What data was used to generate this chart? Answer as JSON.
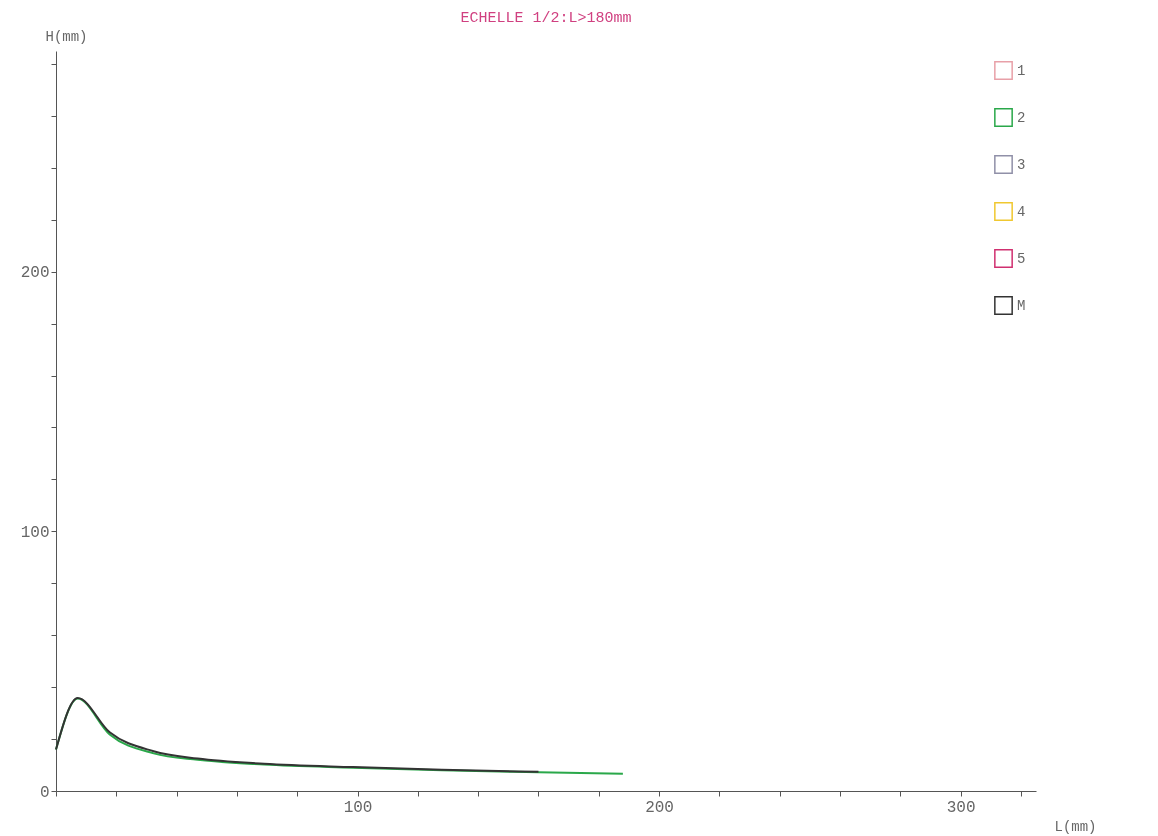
{
  "chart_data": {
    "type": "line",
    "title": "ECHELLE 1/2:L>180mm",
    "xlabel": "L(mm)",
    "ylabel": "H(mm)",
    "xlim": [
      0,
      325
    ],
    "ylim": [
      0,
      285
    ],
    "xticks": [
      {
        "value": 0,
        "label": null
      },
      {
        "value": 20,
        "label": null
      },
      {
        "value": 40,
        "label": null
      },
      {
        "value": 60,
        "label": null
      },
      {
        "value": 80,
        "label": null
      },
      100,
      {
        "value": 120,
        "label": null
      },
      {
        "value": 140,
        "label": null
      },
      {
        "value": 160,
        "label": null
      },
      {
        "value": 180,
        "label": null
      },
      200,
      {
        "value": 220,
        "label": null
      },
      {
        "value": 240,
        "label": null
      },
      {
        "value": 260,
        "label": null
      },
      {
        "value": 280,
        "label": null
      },
      300,
      {
        "value": 320,
        "label": null
      }
    ],
    "yticks": [
      0,
      {
        "value": 20,
        "label": null
      },
      {
        "value": 40,
        "label": null
      },
      {
        "value": 60,
        "label": null
      },
      {
        "value": 80,
        "label": null
      },
      100,
      {
        "value": 120,
        "label": null
      },
      {
        "value": 140,
        "label": null
      },
      {
        "value": 160,
        "label": null
      },
      {
        "value": 180,
        "label": null
      },
      200,
      {
        "value": 220,
        "label": null
      },
      {
        "value": 240,
        "label": null
      },
      {
        "value": 260,
        "label": null
      },
      {
        "value": 280,
        "label": null
      }
    ],
    "grid": false,
    "legend": "top right",
    "marker": "none",
    "line_style": "solid",
    "series": [
      {
        "name": "1",
        "color": "#e8a0a8"
      },
      {
        "name": "2",
        "color": "#2aa84a",
        "x": [
          0,
          7.2,
          17.8,
          32.4,
          47,
          69,
          98.5,
          128,
          160,
          188
        ],
        "values": [
          16,
          35.6,
          21.8,
          14.5,
          12,
          10.2,
          9,
          8,
          7.2,
          6.6
        ]
      },
      {
        "name": "3",
        "color": "#9090a8"
      },
      {
        "name": "4",
        "color": "#f0c830"
      },
      {
        "name": "5",
        "color": "#d03070"
      },
      {
        "name": "M",
        "color": "#333333",
        "x": [
          0,
          7.2,
          17.8,
          32.4,
          47,
          69,
          98.5,
          128,
          160
        ],
        "values": [
          16,
          35.8,
          22.6,
          15.3,
          12.5,
          10.5,
          9.2,
          8.2,
          7.4
        ]
      }
    ]
  }
}
